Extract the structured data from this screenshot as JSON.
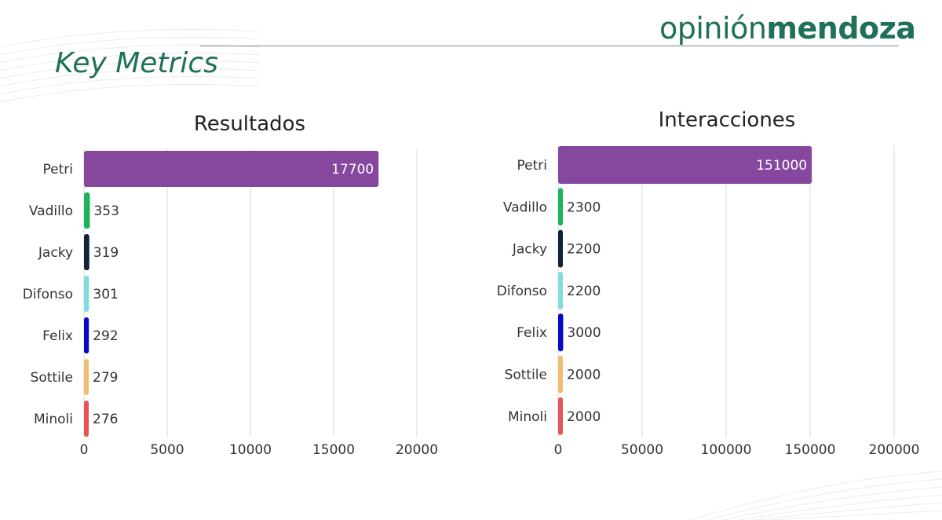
{
  "header": {
    "logo_part1": "opinión",
    "logo_part2": "mendoza",
    "title": "Key Metrics"
  },
  "colors": {
    "brand": "#1f7058",
    "grid": "#d9d9d9",
    "text": "#333333"
  },
  "chart_data": [
    {
      "type": "bar",
      "orientation": "horizontal",
      "title": "Resultados",
      "categories": [
        "Petri",
        "Vadillo",
        "Jacky",
        "Difonso",
        "Felix",
        "Sottile",
        "Minoli"
      ],
      "values": [
        17700,
        353,
        319,
        301,
        292,
        279,
        276
      ],
      "labels": [
        "17700",
        "353",
        "319",
        "301",
        "292",
        "279",
        "276"
      ],
      "colors": [
        "#86479e",
        "#1db35a",
        "#0f2236",
        "#7fdde2",
        "#0707c6",
        "#f1bd70",
        "#e85454"
      ],
      "xlim": [
        0,
        20000
      ],
      "xticks": [
        "0",
        "5000",
        "10000",
        "15000",
        "20000"
      ],
      "grid": true,
      "xlabel": "",
      "ylabel": ""
    },
    {
      "type": "bar",
      "orientation": "horizontal",
      "title": "Interacciones",
      "categories": [
        "Petri",
        "Vadillo",
        "Jacky",
        "Difonso",
        "Felix",
        "Sottile",
        "Minoli"
      ],
      "values": [
        151000,
        2300,
        2200,
        2200,
        3000,
        2000,
        2000
      ],
      "labels": [
        "151000",
        "2300",
        "2200",
        "2200",
        "3000",
        "2000",
        "2000"
      ],
      "colors": [
        "#86479e",
        "#1db35a",
        "#0f2236",
        "#7fdde2",
        "#0707c6",
        "#f1bd70",
        "#e85454"
      ],
      "xlim": [
        0,
        200000
      ],
      "xticks": [
        "0",
        "50000",
        "100000",
        "150000",
        "200000"
      ],
      "grid": true,
      "xlabel": "",
      "ylabel": ""
    }
  ]
}
